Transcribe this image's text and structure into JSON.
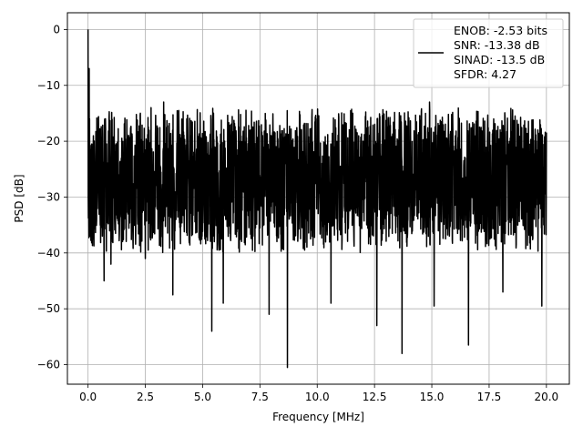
{
  "chart_data": {
    "type": "line",
    "title": "",
    "xlabel": "Frequency [MHz]",
    "ylabel": "PSD [dB]",
    "xlim": [
      -0.9,
      21.0
    ],
    "ylim": [
      -63.5,
      3.0
    ],
    "x_ticks": [
      0.0,
      2.5,
      5.0,
      7.5,
      10.0,
      12.5,
      15.0,
      17.5,
      20.0
    ],
    "x_tick_labels": [
      "0.0",
      "2.5",
      "5.0",
      "7.5",
      "10.0",
      "12.5",
      "15.0",
      "17.5",
      "20.0"
    ],
    "y_ticks": [
      0,
      -10,
      -20,
      -30,
      -40,
      -50,
      -60
    ],
    "y_tick_labels": [
      "0",
      "−10",
      "−20",
      "−30",
      "−40",
      "−50",
      "−60"
    ],
    "grid": true,
    "legend_position": "top-right",
    "legend_lines": [
      "ENOB: -2.53 bits",
      "SNR: -13.38 dB",
      "SINAD: -13.5 dB",
      "SFDR: 4.27"
    ],
    "series": [
      {
        "color": "#000000",
        "x_range": [
          0.0,
          20.0
        ],
        "noise_floor_band": [
          -36,
          -18
        ],
        "peaks": [
          {
            "x": 0.0,
            "y": 0.0
          },
          {
            "x": 0.05,
            "y": -7
          },
          {
            "x": 0.1,
            "y": -35
          },
          {
            "x": 2.75,
            "y": -14
          },
          {
            "x": 3.3,
            "y": -13
          },
          {
            "x": 10.0,
            "y": -16
          },
          {
            "x": 14.9,
            "y": -13
          },
          {
            "x": 17.7,
            "y": -16
          }
        ],
        "dips": [
          {
            "x": 0.7,
            "y": -45
          },
          {
            "x": 1.0,
            "y": -42
          },
          {
            "x": 2.5,
            "y": -41
          },
          {
            "x": 3.7,
            "y": -47.5
          },
          {
            "x": 5.4,
            "y": -54
          },
          {
            "x": 5.9,
            "y": -49
          },
          {
            "x": 7.9,
            "y": -51
          },
          {
            "x": 8.7,
            "y": -60.5
          },
          {
            "x": 10.6,
            "y": -49
          },
          {
            "x": 12.6,
            "y": -53
          },
          {
            "x": 13.7,
            "y": -58
          },
          {
            "x": 15.1,
            "y": -49.5
          },
          {
            "x": 16.6,
            "y": -56.5
          },
          {
            "x": 18.1,
            "y": -47
          },
          {
            "x": 19.8,
            "y": -49.5
          }
        ]
      }
    ]
  }
}
